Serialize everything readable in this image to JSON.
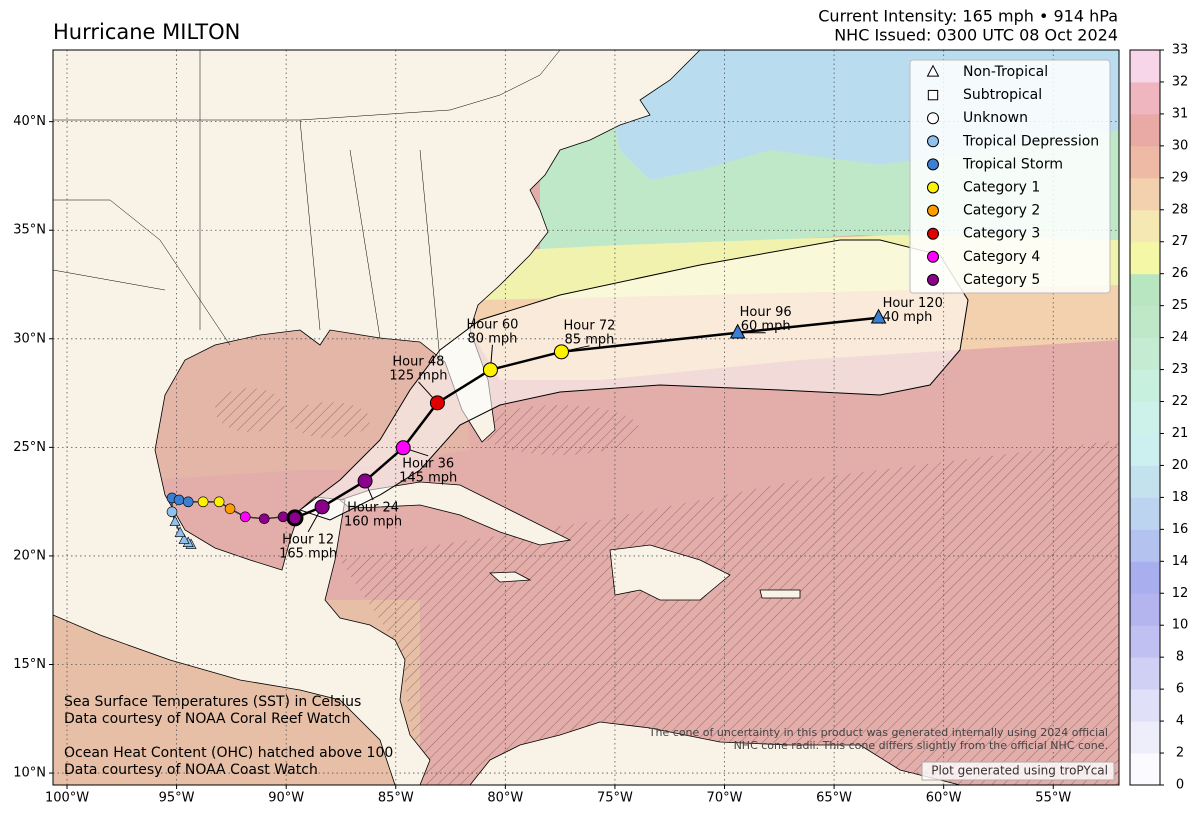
{
  "title": "Hurricane MILTON",
  "info": [
    "Current Intensity: 165 mph • 914 hPa",
    "NHC Issued: 0300 UTC 08 Oct 2024"
  ],
  "map": {
    "xlim": [
      -100.64,
      -52.0
    ],
    "ylim": [
      9.45,
      43.3
    ],
    "xticks": [
      {
        "value": -100,
        "label": "100°W"
      },
      {
        "value": -95,
        "label": "95°W"
      },
      {
        "value": -90,
        "label": "90°W"
      },
      {
        "value": -85,
        "label": "85°W"
      },
      {
        "value": -80,
        "label": "80°W"
      },
      {
        "value": -75,
        "label": "75°W"
      },
      {
        "value": -70,
        "label": "70°W"
      },
      {
        "value": -65,
        "label": "65°W"
      },
      {
        "value": -60,
        "label": "60°W"
      },
      {
        "value": -55,
        "label": "55°W"
      }
    ],
    "yticks": [
      {
        "value": 10,
        "label": "10°N"
      },
      {
        "value": 15,
        "label": "15°N"
      },
      {
        "value": 20,
        "label": "20°N"
      },
      {
        "value": 25,
        "label": "25°N"
      },
      {
        "value": 30,
        "label": "30°N"
      },
      {
        "value": 35,
        "label": "35°N"
      },
      {
        "value": 40,
        "label": "40°N"
      }
    ],
    "grid": true
  },
  "legend": [
    {
      "label": "Non-Tropical",
      "shape": "triangle",
      "color": "#ffffff"
    },
    {
      "label": "Subtropical",
      "shape": "square",
      "color": "#ffffff"
    },
    {
      "label": "Unknown",
      "shape": "circle",
      "color": "#ffffff"
    },
    {
      "label": "Tropical Depression",
      "shape": "circle",
      "color": "#8fc1ec"
    },
    {
      "label": "Tropical Storm",
      "shape": "circle",
      "color": "#3b7fd3"
    },
    {
      "label": "Category 1",
      "shape": "circle",
      "color": "#fff200"
    },
    {
      "label": "Category 2",
      "shape": "circle",
      "color": "#ff9d00"
    },
    {
      "label": "Category 3",
      "shape": "circle",
      "color": "#e00000"
    },
    {
      "label": "Category 4",
      "shape": "circle",
      "color": "#ff00ff"
    },
    {
      "label": "Category 5",
      "shape": "circle",
      "color": "#8b008b"
    }
  ],
  "past_track": [
    {
      "lon": -94.34,
      "lat": 20.51,
      "shape": "triangle",
      "color": "#8fc1ec"
    },
    {
      "lon": -94.47,
      "lat": 20.6,
      "shape": "triangle",
      "color": "#8fc1ec"
    },
    {
      "lon": -94.66,
      "lat": 20.74,
      "shape": "triangle",
      "color": "#8fc1ec"
    },
    {
      "lon": -94.84,
      "lat": 21.06,
      "shape": "triangle",
      "color": "#8fc1ec"
    },
    {
      "lon": -95.07,
      "lat": 21.57,
      "shape": "triangle",
      "color": "#8fc1ec"
    },
    {
      "lon": -95.21,
      "lat": 22.03,
      "shape": "circle",
      "color": "#8fc1ec"
    },
    {
      "lon": -95.21,
      "lat": 22.67,
      "shape": "circle",
      "color": "#3b7fd3"
    },
    {
      "lon": -94.89,
      "lat": 22.58,
      "shape": "circle",
      "color": "#3b7fd3"
    },
    {
      "lon": -94.47,
      "lat": 22.49,
      "shape": "circle",
      "color": "#3b7fd3"
    },
    {
      "lon": -93.79,
      "lat": 22.49,
      "shape": "circle",
      "color": "#fff200"
    },
    {
      "lon": -93.06,
      "lat": 22.49,
      "shape": "circle",
      "color": "#fff200"
    },
    {
      "lon": -92.56,
      "lat": 22.17,
      "shape": "circle",
      "color": "#ff9d00"
    },
    {
      "lon": -91.87,
      "lat": 21.8,
      "shape": "circle",
      "color": "#ff00ff"
    },
    {
      "lon": -91.0,
      "lat": 21.71,
      "shape": "circle",
      "color": "#8b008b"
    },
    {
      "lon": -90.14,
      "lat": 21.8,
      "shape": "circle",
      "color": "#8b008b"
    }
  ],
  "current": {
    "lon": -89.6,
    "lat": 21.75,
    "color": "#8b008b"
  },
  "forecast": [
    {
      "hour": "Hour 12",
      "wind": "165 mph",
      "lon": -88.36,
      "lat": 22.26,
      "shape": "circle",
      "color": "#8b008b"
    },
    {
      "hour": "Hour 24",
      "wind": "160 mph",
      "lon": -86.4,
      "lat": 23.45,
      "shape": "circle",
      "color": "#8b008b"
    },
    {
      "hour": "Hour 36",
      "wind": "145 mph",
      "lon": -84.66,
      "lat": 24.98,
      "shape": "circle",
      "color": "#ff00ff"
    },
    {
      "hour": "Hour 48",
      "wind": "125 mph",
      "lon": -83.1,
      "lat": 27.05,
      "shape": "circle",
      "color": "#e00000"
    },
    {
      "hour": "Hour 60",
      "wind": "80 mph",
      "lon": -80.68,
      "lat": 28.57,
      "shape": "circle",
      "color": "#fff200"
    },
    {
      "hour": "Hour 72",
      "wind": "85 mph",
      "lon": -77.44,
      "lat": 29.4,
      "shape": "circle",
      "color": "#fff200"
    },
    {
      "hour": "Hour 96",
      "wind": "60 mph",
      "lon": -69.4,
      "lat": 30.28,
      "shape": "triangle",
      "color": "#3b7fd3"
    },
    {
      "hour": "Hour 120",
      "wind": "40 mph",
      "lon": -62.97,
      "lat": 30.97,
      "shape": "triangle",
      "color": "#3b7fd3"
    }
  ],
  "colorbar": {
    "ticks": [
      0,
      2,
      4,
      6,
      8,
      10,
      12,
      14,
      16,
      18,
      20,
      21,
      22,
      23,
      24,
      25,
      26,
      27,
      28,
      29,
      30,
      31,
      32,
      33
    ],
    "colors": [
      "#fbfbff",
      "#eeeefa",
      "#e0e0f8",
      "#d0d0f5",
      "#c0c0f2",
      "#b4b4ef",
      "#a9aeee",
      "#b3c2ee",
      "#bcd4ef",
      "#c4e2ee",
      "#cceff0",
      "#cdf2ea",
      "#c8f0de",
      "#c5ecd3",
      "#bfe8c9",
      "#b8e6c0",
      "#f3f7a6",
      "#f5e8b3",
      "#f3d0ae",
      "#eebaa5",
      "#e9a9a5",
      "#efb6c0",
      "#f7d6ea"
    ]
  },
  "notes": [
    "Sea Surface Temperatures (SST) in Celsius",
    "Data courtesy of NOAA Coral Reef Watch",
    "Ocean Heat Content (OHC) hatched above 100",
    "Data courtesy of NOAA Coast Watch"
  ],
  "disclaimer": [
    "The cone of uncertainty in this product was generated internally using 2024 official",
    "NHC cone radii. This cone differs slightly from the official NHC cone."
  ],
  "credit": "Plot generated using troPYcal"
}
